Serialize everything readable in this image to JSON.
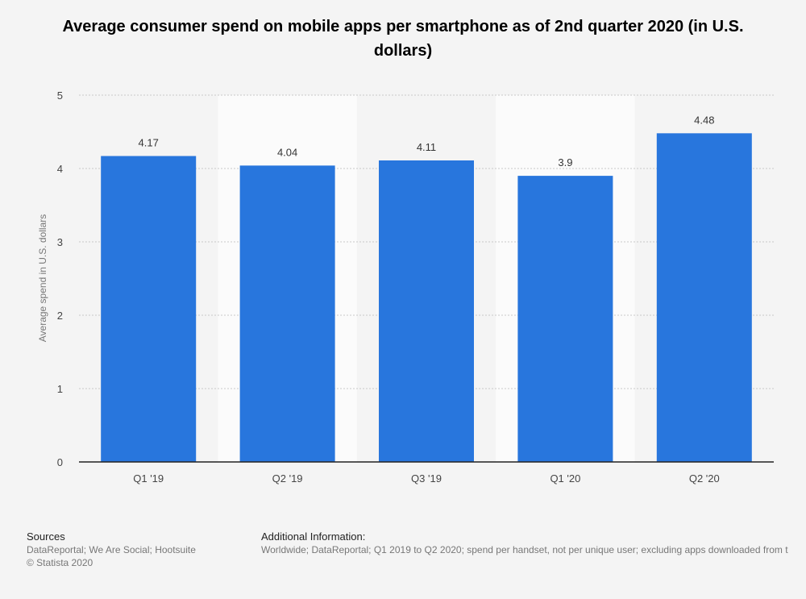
{
  "title": "Average consumer spend on mobile apps per smartphone as of 2nd quarter 2020 (in U.S. dollars)",
  "colors": {
    "bar": "#2876dd",
    "band": "#fbfbfb",
    "background": "#f4f4f4",
    "grid": "#c9c9c9",
    "axis": "#222222"
  },
  "chart_data": {
    "type": "bar",
    "categories": [
      "Q1 '19",
      "Q2 '19",
      "Q3 '19",
      "Q1 '20",
      "Q2 '20"
    ],
    "values": [
      4.17,
      4.04,
      4.11,
      3.9,
      4.48
    ],
    "value_labels": [
      "4.17",
      "4.04",
      "4.11",
      "3.9",
      "4.48"
    ],
    "xlabel": "",
    "ylabel": "Average spend in U.S. dollars",
    "ylim": [
      0,
      5
    ],
    "yticks": [
      0,
      1,
      2,
      3,
      4,
      5
    ],
    "grid": true,
    "legend": "none"
  },
  "footer": {
    "sources_heading": "Sources",
    "sources_text": "DataReportal; We Are Social; Hootsuite",
    "copyright": "© Statista 2020",
    "info_heading": "Additional Information:",
    "info_text": "Worldwide; DataReportal; Q1 2019 to Q2 2020; spend per handset, not per unique user; excluding apps downloaded from t"
  }
}
